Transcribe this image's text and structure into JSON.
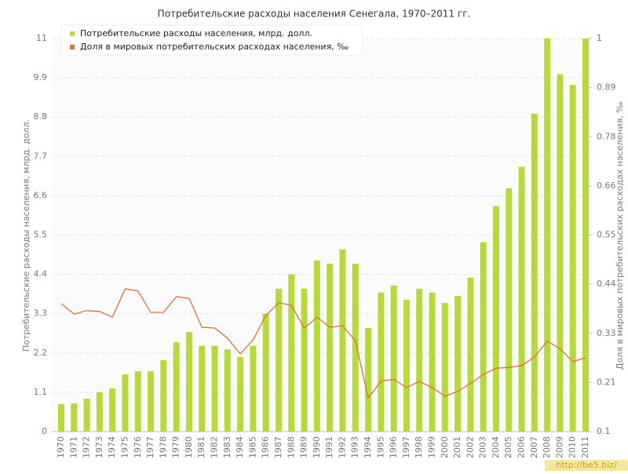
{
  "chart_data": {
    "type": "bar-line",
    "title": "Потребительские расходы населения Сенегала, 1970–2011 гг.",
    "y_label": "Потребительские расходы населения, млрд. долл.",
    "y2_label": "Доля в мировых потребительских расходах населения, ‰",
    "watermark": "http://be5.biz/",
    "categories": [
      "1970",
      "1971",
      "1972",
      "1973",
      "1974",
      "1975",
      "1976",
      "1977",
      "1978",
      "1979",
      "1980",
      "1981",
      "1982",
      "1983",
      "1984",
      "1985",
      "1986",
      "1987",
      "1988",
      "1989",
      "1990",
      "1991",
      "1992",
      "1993",
      "1994",
      "1995",
      "1996",
      "1997",
      "1998",
      "1999",
      "2000",
      "2001",
      "2002",
      "2003",
      "2004",
      "2005",
      "2006",
      "2007",
      "2008",
      "2009",
      "2010",
      "2011"
    ],
    "series": [
      {
        "name": "Потребительские расходы населения, млрд. долл.",
        "color": "#b8d93a",
        "type": "bar",
        "values": [
          0.77,
          0.79,
          0.92,
          1.1,
          1.21,
          1.6,
          1.69,
          1.69,
          2.0,
          2.5,
          2.79,
          2.4,
          2.4,
          2.3,
          2.09,
          2.4,
          3.3,
          4.0,
          4.4,
          4.0,
          4.79,
          4.7,
          5.1,
          4.7,
          2.9,
          3.89,
          4.09,
          3.69,
          4.0,
          3.89,
          3.6,
          3.8,
          4.31,
          5.3,
          6.31,
          6.81,
          7.41,
          8.9,
          11.0,
          10.0,
          9.7,
          11.0
        ]
      },
      {
        "name": "Доля в мировых потребительских расходах населения, ‰",
        "color": "#e0703a",
        "type": "line",
        "axis": "y2",
        "values": [
          0.393,
          0.369,
          0.377,
          0.375,
          0.362,
          0.427,
          0.422,
          0.373,
          0.373,
          0.409,
          0.405,
          0.339,
          0.337,
          0.314,
          0.278,
          0.31,
          0.366,
          0.395,
          0.389,
          0.337,
          0.362,
          0.339,
          0.342,
          0.308,
          0.177,
          0.215,
          0.22,
          0.201,
          0.215,
          0.201,
          0.181,
          0.192,
          0.21,
          0.231,
          0.245,
          0.247,
          0.251,
          0.271,
          0.307,
          0.29,
          0.26,
          0.269
        ]
      }
    ],
    "ylim": [
      0,
      11
    ],
    "yticks": [
      0,
      1.1,
      2.2,
      3.3,
      4.4,
      5.5,
      6.6,
      7.7,
      8.8,
      9.9,
      11
    ],
    "y2lim": [
      0.1,
      1
    ],
    "y2ticks": [
      0.1,
      {
        "value": 0.2125,
        "label": "0.21"
      },
      {
        "value": 0.325,
        "label": "0.33"
      },
      {
        "value": 0.4375,
        "label": "0.44"
      },
      0.55,
      {
        "value": 0.6625,
        "label": "0.66"
      },
      {
        "value": 0.775,
        "label": "0.78"
      },
      {
        "value": 0.8875,
        "label": "0.89"
      },
      1
    ],
    "grid": true,
    "legend": "top-left"
  }
}
